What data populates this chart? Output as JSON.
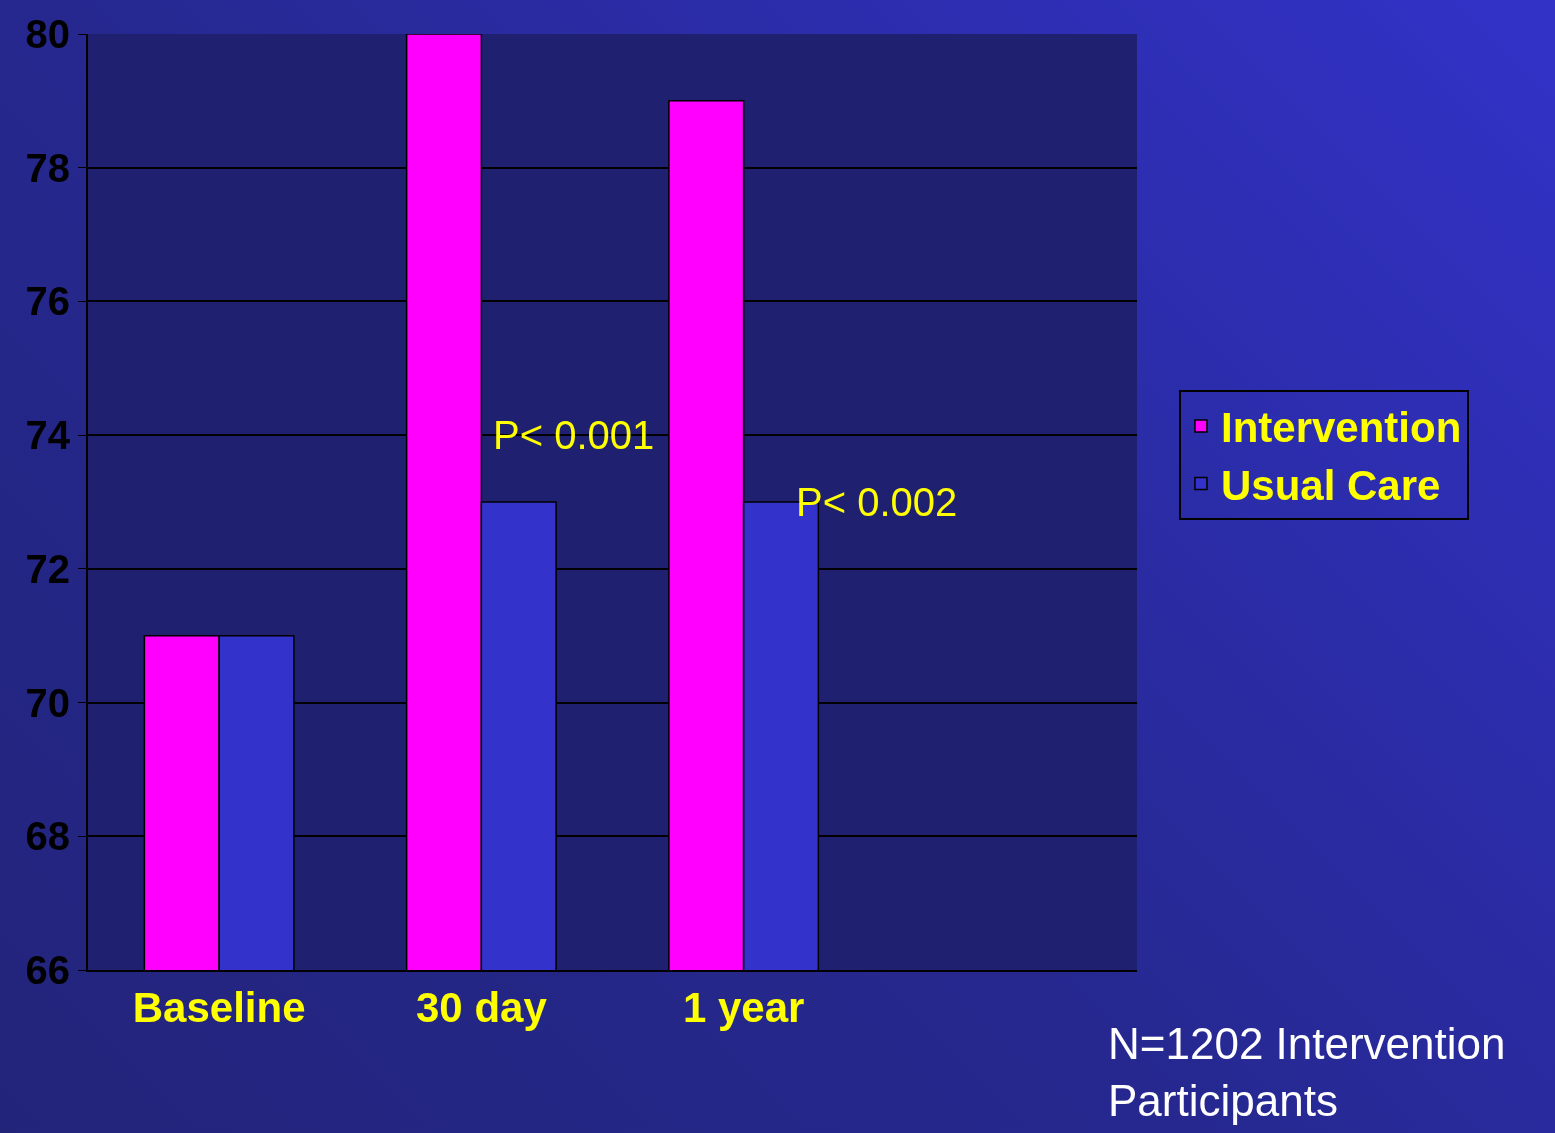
{
  "chart_data": {
    "type": "bar",
    "categories": [
      "Baseline",
      "30 day",
      "1 year",
      null
    ],
    "series": [
      {
        "name": "Intervention",
        "color": "#ff00ff",
        "values": [
          71,
          80,
          79,
          null
        ]
      },
      {
        "name": "Usual Care",
        "color": "#3333cc",
        "values": [
          71,
          73,
          73,
          null
        ]
      }
    ],
    "ylim": [
      66,
      80
    ],
    "yticks": [
      66,
      68,
      70,
      72,
      74,
      76,
      78,
      80
    ],
    "grid": "y",
    "legend": "right",
    "annotations": [
      {
        "text": "P< 0.001",
        "x": "30 day",
        "y": 74
      },
      {
        "text": "P< 0.002",
        "x": "1 year",
        "y": 73
      },
      "N=1202 Intervention Participants"
    ]
  }
}
